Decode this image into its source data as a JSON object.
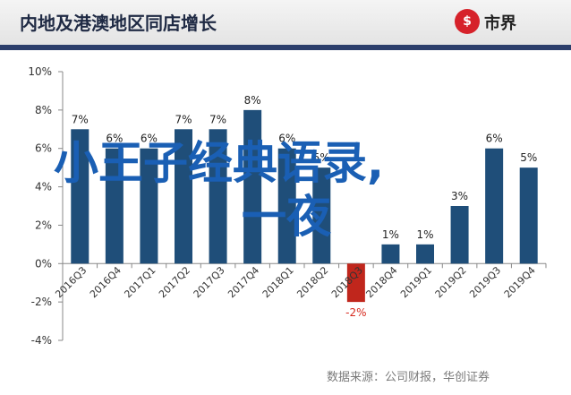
{
  "header": {
    "title": "内地及港澳地区同店增长",
    "logo_mark": "$",
    "logo_text": "市界",
    "logo_icon": "dollar-circle-icon"
  },
  "source_text": "数据来源：公司财报，华创证券",
  "overlay": {
    "line1": "小王子经典语录,",
    "line2": "一夜"
  },
  "colors": {
    "bar": "#1f4e79",
    "bar_negative": "#c0261c",
    "negative_label": "#d62a1f",
    "header_bar": "#2c3e6b",
    "overlay_text": "#1a5fb4"
  },
  "chart_data": {
    "type": "bar",
    "categories": [
      "2016Q3",
      "2016Q4",
      "2017Q1",
      "2017Q2",
      "2017Q3",
      "2017Q4",
      "2018Q1",
      "2018Q2",
      "2018Q3",
      "2018Q4",
      "2019Q1",
      "2019Q2",
      "2019Q3",
      "2019Q4"
    ],
    "values": [
      7,
      6,
      6,
      7,
      7,
      8,
      6,
      5,
      -2,
      1,
      1,
      3,
      6,
      5
    ],
    "data_labels": [
      "7%",
      "6%",
      "6%",
      "7%",
      "7%",
      "8%",
      "6%",
      "5%",
      "-2%",
      "1%",
      "1%",
      "3%",
      "6%",
      "5%"
    ],
    "ylim": [
      -4,
      10
    ],
    "yticks": [
      10,
      8,
      6,
      4,
      2,
      0,
      -2,
      -4
    ],
    "ytick_labels": [
      "10%",
      "8%",
      "6%",
      "4%",
      "2%",
      "0%",
      "-2%",
      "-4%"
    ],
    "grid": false
  }
}
